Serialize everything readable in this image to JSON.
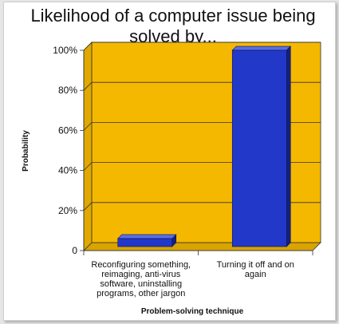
{
  "chart_data": {
    "type": "bar",
    "title_lines": [
      "Likelihood of a computer issue being",
      "solved by..."
    ],
    "xlabel": "Problem-solving technique",
    "ylabel": "Probability",
    "ylim": [
      0,
      100
    ],
    "yticks": [
      "0",
      "20%",
      "40%",
      "60%",
      "80%",
      "100%"
    ],
    "categories": [
      [
        "Reconfiguring something,",
        "reimaging, anti-virus",
        "software, uninstalling",
        "programs, other jargon"
      ],
      [
        "Turning it off and on",
        "again"
      ]
    ],
    "values": [
      4,
      98
    ],
    "legend": "none",
    "grid": true,
    "colors": {
      "plot_background": "#f5b800",
      "bar_front": "#2238c9",
      "bar_top": "#5a6ee6",
      "bar_side": "#142080",
      "gridline": "#333333"
    }
  }
}
